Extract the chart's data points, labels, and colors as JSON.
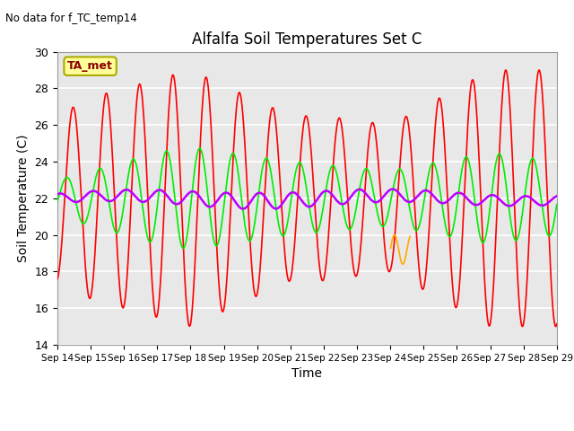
{
  "title": "Alfalfa Soil Temperatures Set C",
  "no_data_text": "No data for f_TC_temp14",
  "legend_label": "TA_met",
  "ylabel": "Soil Temperature (C)",
  "xlabel": "Time",
  "ylim": [
    14,
    30
  ],
  "yticks": [
    14,
    16,
    18,
    20,
    22,
    24,
    26,
    28,
    30
  ],
  "xtick_labels": [
    "Sep 14",
    "Sep 15",
    "Sep 16",
    "Sep 17",
    "Sep 18",
    "Sep 19",
    "Sep 20",
    "Sep 21",
    "Sep 22",
    "Sep 23",
    "Sep 24",
    "Sep 25",
    "Sep 26",
    "Sep 27",
    "Sep 28",
    "Sep 29"
  ],
  "bg_color": "#e8e8e8",
  "grid_color": "white",
  "colors": {
    "-2cm": "#ff0000",
    "-4cm": "#ffaa00",
    "-8cm": "#00ee00",
    "-32cm": "#bb00ff"
  },
  "line_widths": {
    "-2cm": 1.2,
    "-4cm": 1.2,
    "-8cm": 1.2,
    "-32cm": 1.8
  },
  "figsize": [
    6.4,
    4.8
  ],
  "dpi": 100
}
